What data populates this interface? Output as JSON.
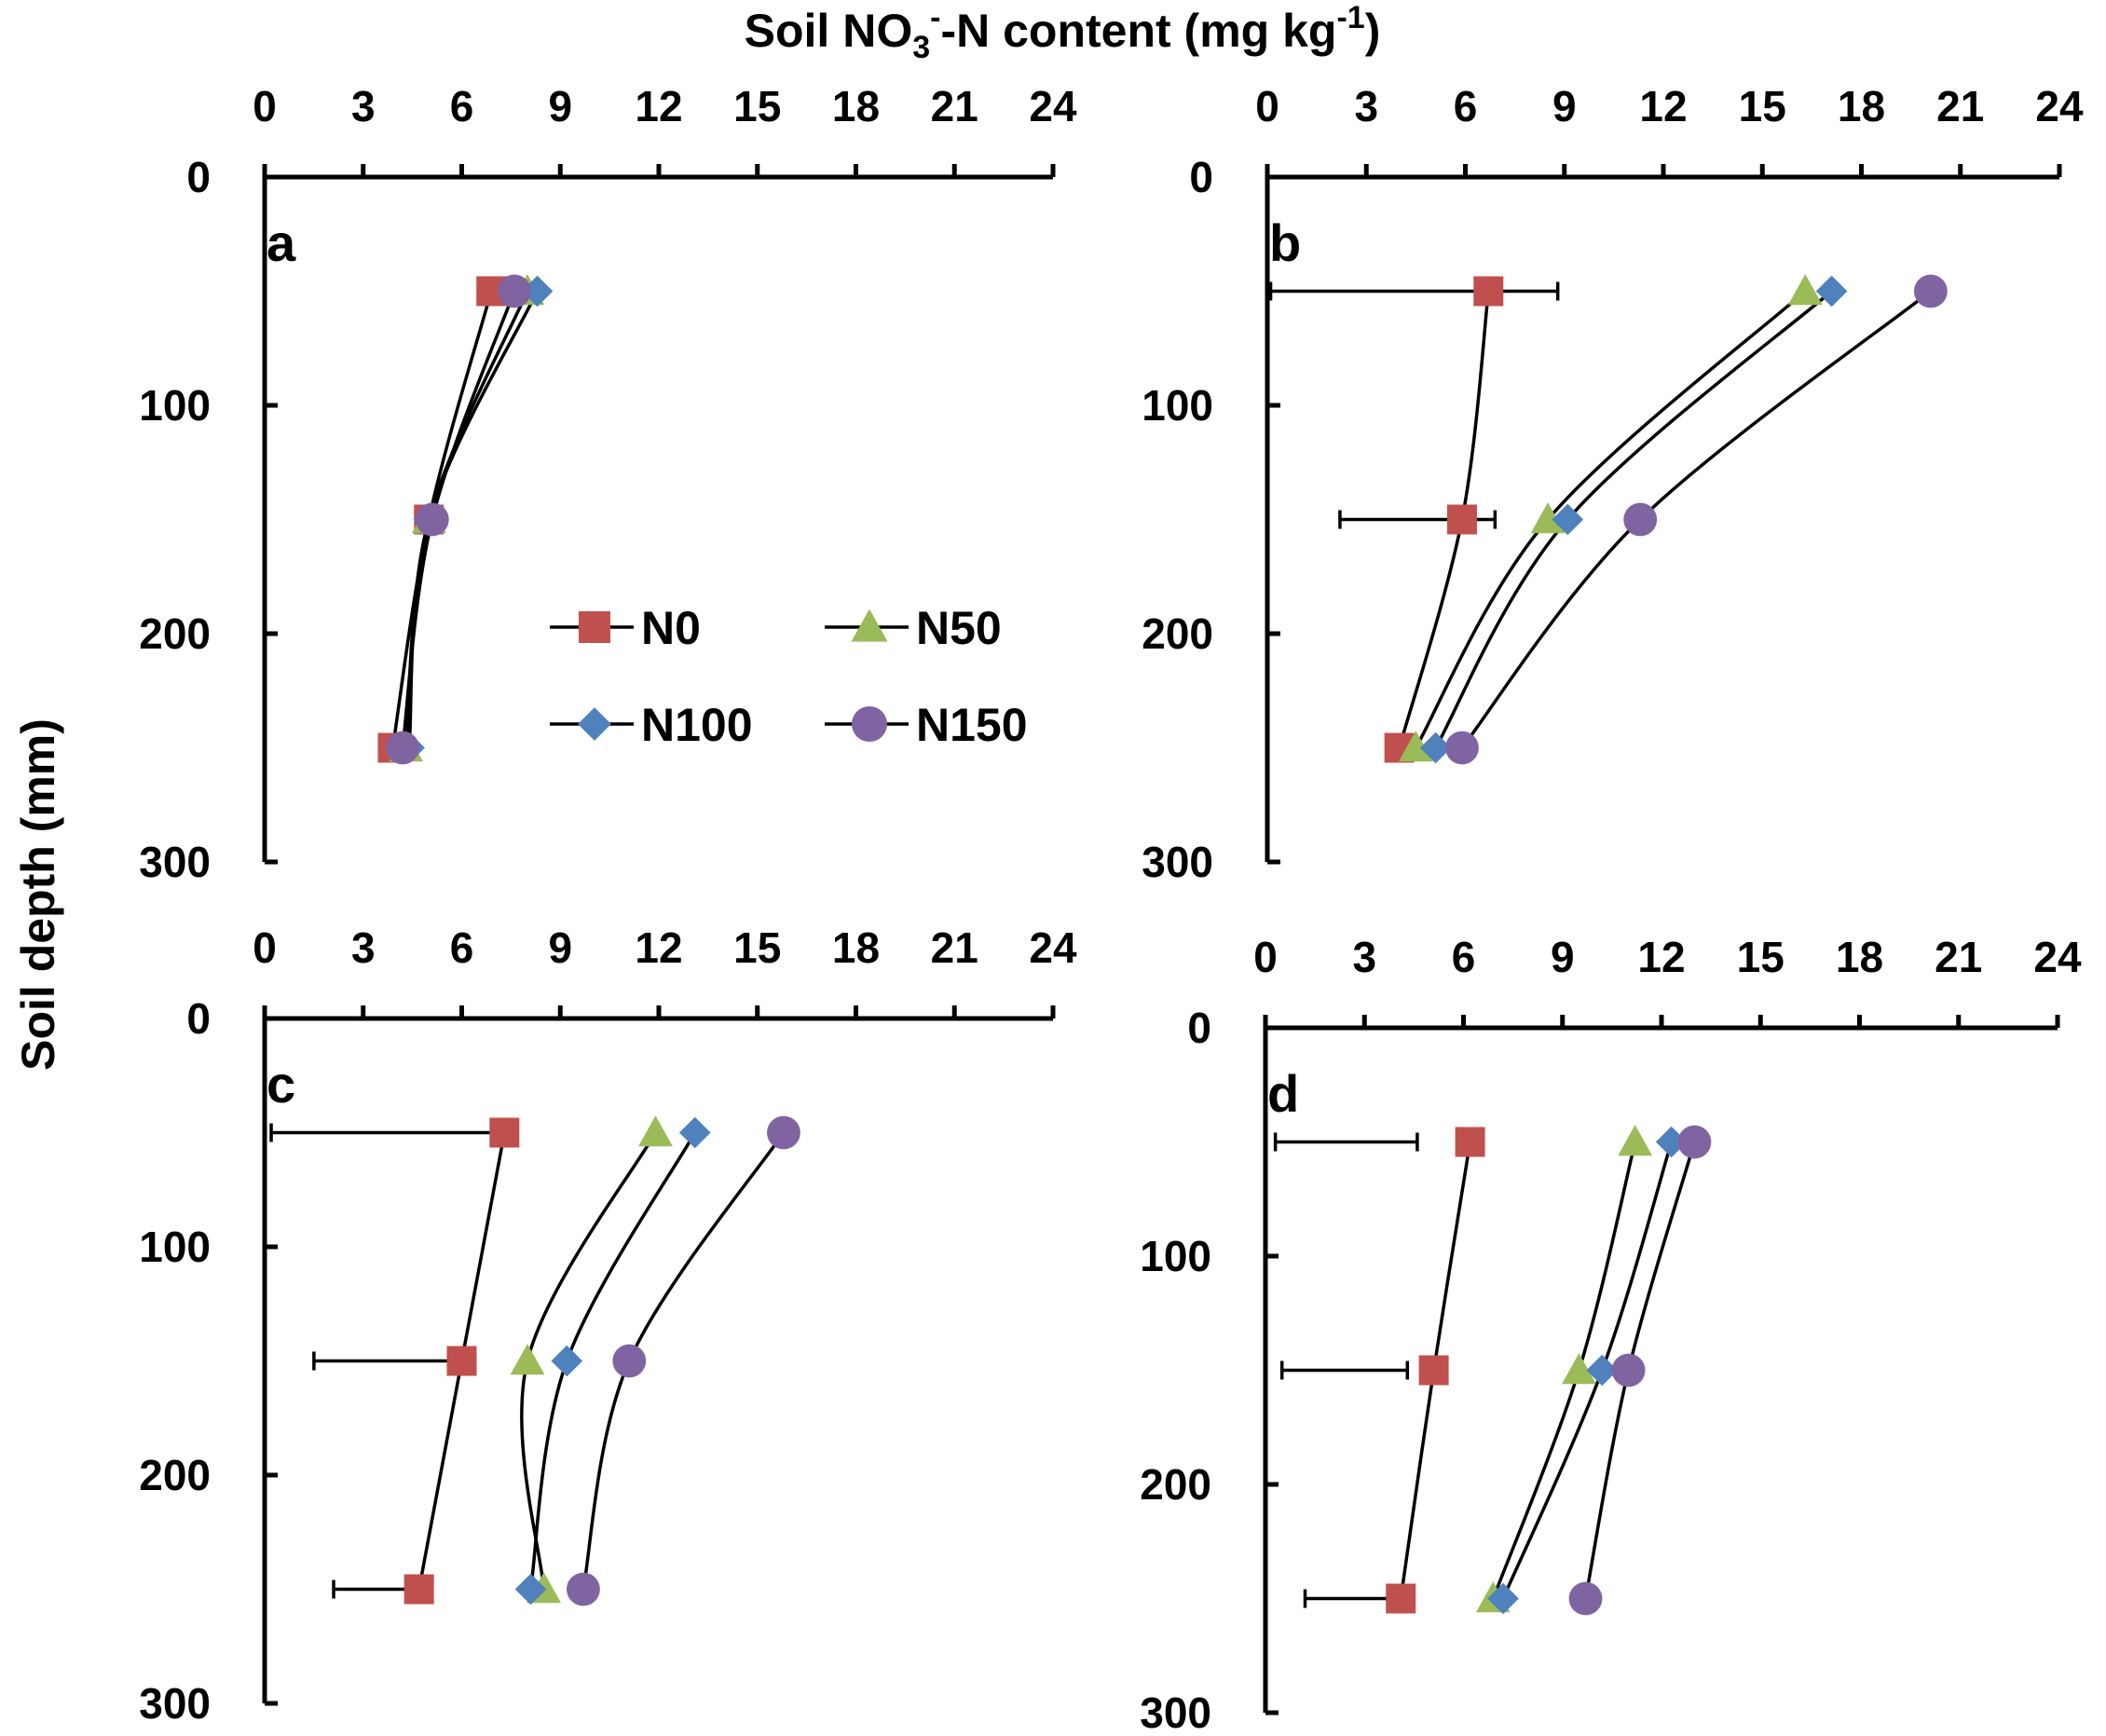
{
  "chart_data": {
    "type": "line",
    "title": "Soil NO3--N content (mg kg-1)",
    "title_parts": {
      "pre": "Soil NO",
      "sub": "3",
      "sup1": "-",
      "mid": "-N content (mg kg",
      "sup2": "-1",
      "post": ")"
    },
    "ylabel": "Soil depth (mm)",
    "xlim": [
      0,
      24
    ],
    "ylim": [
      0,
      300
    ],
    "x_ticks": [
      "0",
      "3",
      "6",
      "9",
      "12",
      "15",
      "18",
      "21",
      "24"
    ],
    "y_ticks": [
      "0",
      "100",
      "200",
      "300"
    ],
    "legend": [
      {
        "name": "N0",
        "marker": "square",
        "color": "#C0504D"
      },
      {
        "name": "N50",
        "marker": "triangle",
        "color": "#9BBB59"
      },
      {
        "name": "N100",
        "marker": "diamond",
        "color": "#4F81BD"
      },
      {
        "name": "N150",
        "marker": "circle",
        "color": "#8064A2"
      }
    ],
    "depths": [
      50,
      150,
      250
    ],
    "panels": [
      {
        "label": "a",
        "series": [
          {
            "name": "N0",
            "values": [
              6.9,
              5.0,
              3.9
            ]
          },
          {
            "name": "N50",
            "values": [
              8.0,
              5.0,
              4.3
            ]
          },
          {
            "name": "N100",
            "values": [
              8.3,
              5.0,
              4.4
            ]
          },
          {
            "name": "N150",
            "values": [
              7.6,
              5.1,
              4.2
            ]
          }
        ],
        "error_bars": [
          null,
          null,
          null
        ]
      },
      {
        "label": "b",
        "series": [
          {
            "name": "N0",
            "values": [
              6.7,
              5.9,
              4.0
            ]
          },
          {
            "name": "N50",
            "values": [
              16.3,
              8.5,
              4.5
            ]
          },
          {
            "name": "N100",
            "values": [
              17.1,
              9.1,
              5.1
            ]
          },
          {
            "name": "N150",
            "values": [
              20.1,
              11.3,
              5.9
            ]
          }
        ],
        "error_bars": [
          {
            "series": "N0",
            "low": 0.1,
            "high": 8.8
          },
          {
            "series": "N0",
            "low": 2.2,
            "high": 6.9
          },
          null
        ]
      },
      {
        "label": "c",
        "series": [
          {
            "name": "N0",
            "values": [
              7.3,
              6.0,
              4.7
            ]
          },
          {
            "name": "N50",
            "values": [
              11.9,
              8.0,
              8.5
            ]
          },
          {
            "name": "N100",
            "values": [
              13.1,
              9.2,
              8.1
            ]
          },
          {
            "name": "N150",
            "values": [
              15.8,
              11.1,
              9.7
            ]
          }
        ],
        "error_bars": [
          {
            "series": "N0",
            "low": 0.2,
            "high": 7.0
          },
          {
            "series": "N0",
            "low": 1.5,
            "high": 6.1
          },
          {
            "series": "N0",
            "low": 2.1,
            "high": 4.6
          }
        ]
      },
      {
        "label": "d",
        "series": [
          {
            "name": "N0",
            "values": [
              6.2,
              5.1,
              4.1
            ]
          },
          {
            "name": "N50",
            "values": [
              11.2,
              9.5,
              6.9
            ]
          },
          {
            "name": "N100",
            "values": [
              12.3,
              10.2,
              7.2
            ]
          },
          {
            "name": "N150",
            "values": [
              13.0,
              11.0,
              9.7
            ]
          }
        ],
        "error_bars": [
          {
            "series": "N0",
            "low": 0.3,
            "high": 4.6
          },
          {
            "series": "N0",
            "low": 0.5,
            "high": 4.3
          },
          {
            "series": "N0",
            "low": 1.2,
            "high": 4.1
          }
        ]
      }
    ]
  }
}
